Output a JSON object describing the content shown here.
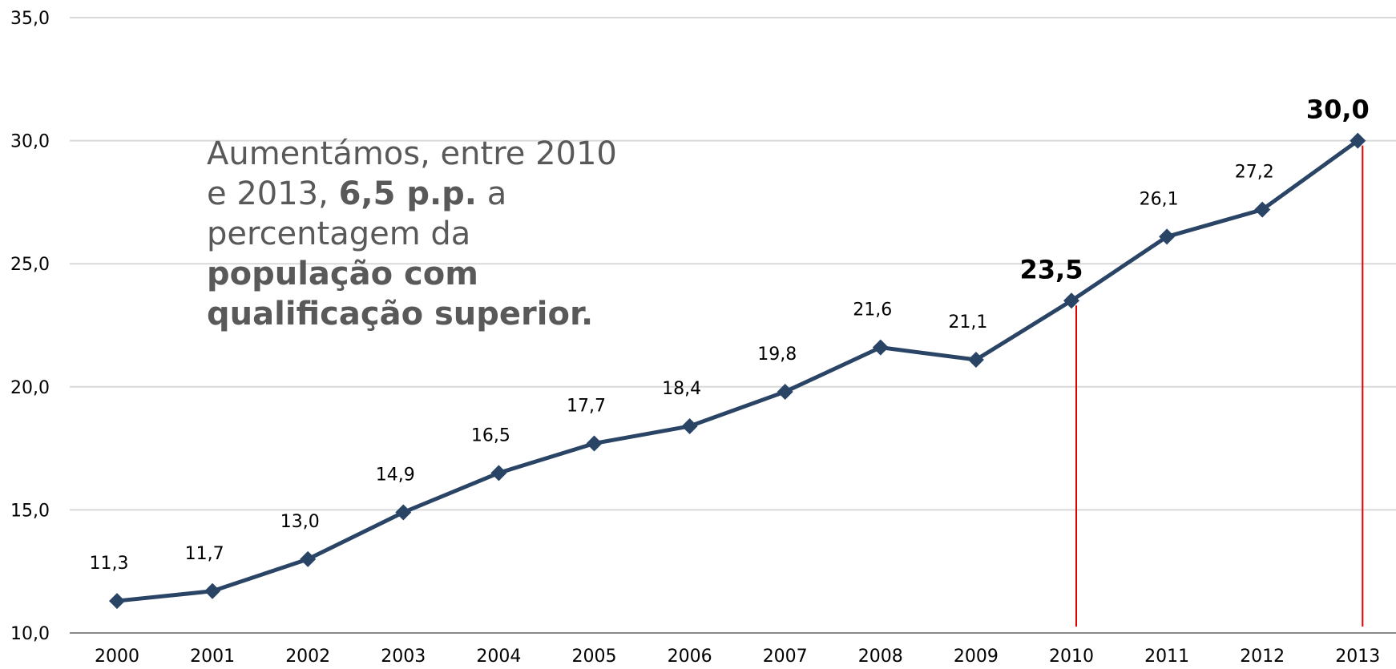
{
  "chart_data": {
    "type": "line",
    "categories": [
      "2000",
      "2001",
      "2002",
      "2003",
      "2004",
      "2005",
      "2006",
      "2007",
      "2008",
      "2009",
      "2010",
      "2011",
      "2012",
      "2013"
    ],
    "series": [
      {
        "color": "#2a4466",
        "values": [
          11.3,
          11.7,
          13.0,
          14.9,
          16.5,
          17.7,
          18.4,
          19.8,
          21.6,
          21.1,
          23.5,
          26.1,
          27.2,
          30.0
        ],
        "value_labels": [
          "11,3",
          "11,7",
          "13,0",
          "14,9",
          "16,5",
          "17,7",
          "18,4",
          "19,8",
          "21,6",
          "21,1",
          "23,5",
          "26,1",
          "27,2",
          "30,0"
        ]
      }
    ],
    "highlight_indices": [
      10,
      13
    ],
    "highlight_color": "#e00000",
    "ylim": [
      10,
      35
    ],
    "yticks": [
      {
        "value": 10,
        "label": "10,0"
      },
      {
        "value": 15,
        "label": "15,0"
      },
      {
        "value": 20,
        "label": "20,0"
      },
      {
        "value": 25,
        "label": "25,0"
      },
      {
        "value": 30,
        "label": "30,0"
      },
      {
        "value": 35,
        "label": "35,0"
      }
    ],
    "grid": true,
    "annotation_lines": [
      [
        {
          "text": "Aumentámos, entre 2010"
        }
      ],
      [
        {
          "text": "e 2013, "
        },
        {
          "text": "6,5 p.p.",
          "bold": true
        },
        {
          "text": " a"
        }
      ],
      [
        {
          "text": "percentagem da"
        }
      ],
      [
        {
          "text": "população com",
          "bold": true
        }
      ],
      [
        {
          "text": "qualificação superior.",
          "bold": true
        }
      ]
    ]
  }
}
